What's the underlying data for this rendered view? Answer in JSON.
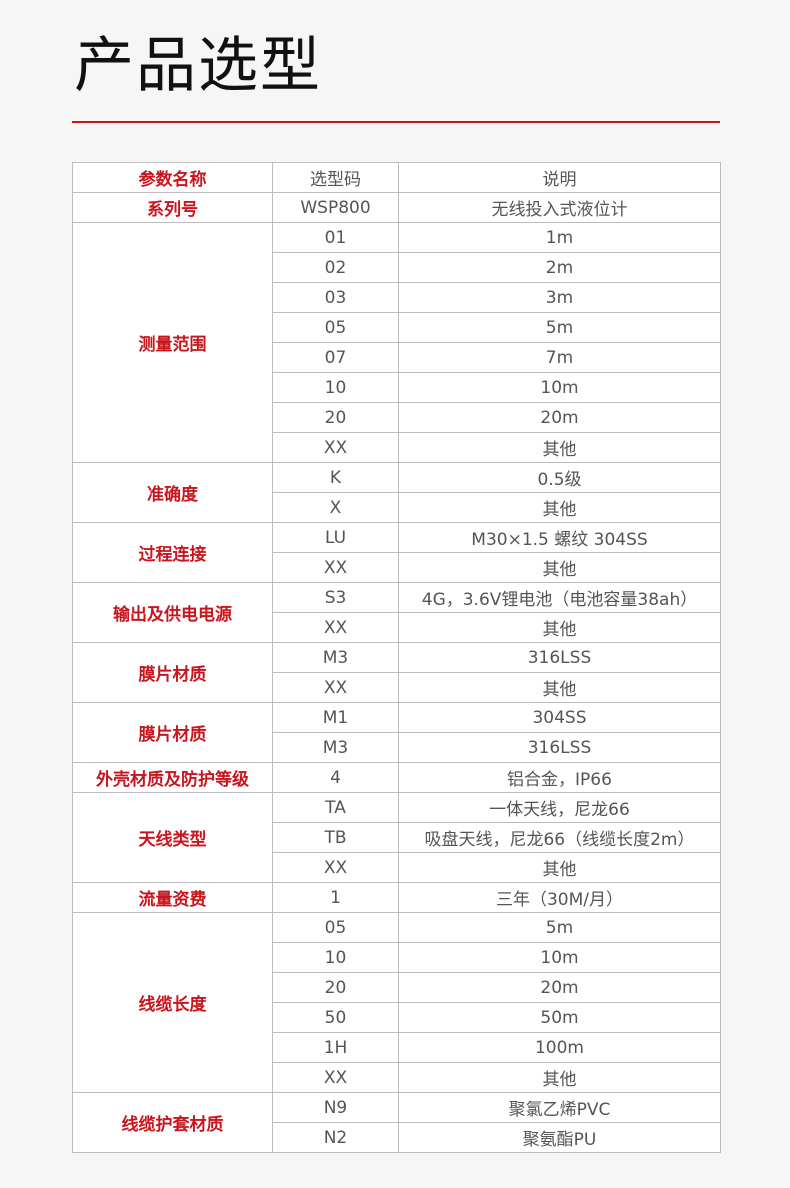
{
  "title": "产品选型",
  "colors": {
    "accent": "#c9151e",
    "text": "#555555",
    "border": "#bdbdbd"
  },
  "table": {
    "headers": {
      "param": "参数名称",
      "code": "选型码",
      "desc": "说明"
    },
    "groups": [
      {
        "label": "系列号",
        "rows": [
          [
            "WSP800",
            "无线投入式液位计"
          ]
        ]
      },
      {
        "label": "测量范围",
        "rows": [
          [
            "01",
            "1m"
          ],
          [
            "02",
            "2m"
          ],
          [
            "03",
            "3m"
          ],
          [
            "05",
            "5m"
          ],
          [
            "07",
            "7m"
          ],
          [
            "10",
            "10m"
          ],
          [
            "20",
            "20m"
          ],
          [
            "XX",
            "其他"
          ]
        ]
      },
      {
        "label": "准确度",
        "rows": [
          [
            "K",
            "0.5级"
          ],
          [
            "X",
            "其他"
          ]
        ]
      },
      {
        "label": "过程连接",
        "rows": [
          [
            "LU",
            "M30×1.5 螺纹 304SS"
          ],
          [
            "XX",
            "其他"
          ]
        ]
      },
      {
        "label": "输出及供电电源",
        "rows": [
          [
            "S3",
            "4G，3.6V锂电池（电池容量38ah）"
          ],
          [
            "XX",
            "其他"
          ]
        ]
      },
      {
        "label": "膜片材质",
        "rows": [
          [
            "M3",
            "316LSS"
          ],
          [
            "XX",
            "其他"
          ]
        ]
      },
      {
        "label": "膜片材质",
        "rows": [
          [
            "M1",
            "304SS"
          ],
          [
            "M3",
            "316LSS"
          ]
        ]
      },
      {
        "label": "外壳材质及防护等级",
        "rows": [
          [
            "4",
            "铝合金，IP66"
          ]
        ]
      },
      {
        "label": "天线类型",
        "rows": [
          [
            "TA",
            "一体天线，尼龙66"
          ],
          [
            "TB",
            "吸盘天线，尼龙66（线缆长度2m）"
          ],
          [
            "XX",
            "其他"
          ]
        ]
      },
      {
        "label": "流量资费",
        "rows": [
          [
            "1",
            "三年（30M/月）"
          ]
        ]
      },
      {
        "label": "线缆长度",
        "rows": [
          [
            "05",
            "5m"
          ],
          [
            "10",
            "10m"
          ],
          [
            "20",
            "20m"
          ],
          [
            "50",
            "50m"
          ],
          [
            "1H",
            "100m"
          ],
          [
            "XX",
            "其他"
          ]
        ]
      },
      {
        "label": "线缆护套材质",
        "rows": [
          [
            "N9",
            "聚氯乙烯PVC"
          ],
          [
            "N2",
            "聚氨酯PU"
          ]
        ]
      }
    ]
  }
}
